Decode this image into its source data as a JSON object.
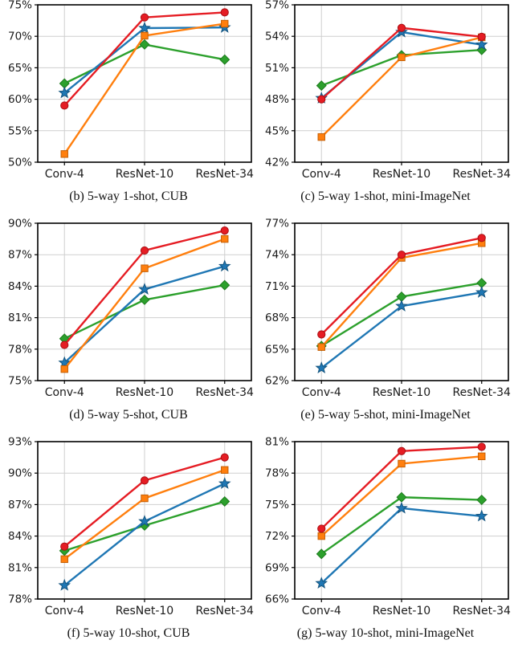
{
  "page": {
    "background": "#ffffff",
    "gridline_color": "#cfcfcf",
    "axis_color": "#000000",
    "tick_label_color": "#1a1a1a"
  },
  "chart_data": [
    {
      "id": "b",
      "type": "line",
      "caption": "(b) 5-way 1-shot, CUB",
      "categories": [
        "Conv-4",
        "ResNet-10",
        "ResNet-34"
      ],
      "ylim": [
        50,
        75
      ],
      "ytick_values": [
        50,
        55,
        60,
        65,
        70,
        75
      ],
      "ytick_labels": [
        "50%",
        "55%",
        "60%",
        "65%",
        "70%",
        "75%"
      ],
      "grid": true,
      "legend": "none",
      "series": [
        {
          "name": "green-diamond",
          "marker": "diamond",
          "color": "#2ca02c",
          "edge": "#1d7a1d",
          "values": [
            62.5,
            68.7,
            66.3
          ]
        },
        {
          "name": "blue-star",
          "marker": "star",
          "color": "#1f77b4",
          "edge": "#15557f",
          "values": [
            61.0,
            71.3,
            71.4
          ]
        },
        {
          "name": "orange-square",
          "marker": "square",
          "color": "#ff7f0e",
          "edge": "#c45f05",
          "values": [
            51.3,
            70.1,
            72.0
          ]
        },
        {
          "name": "red-circle",
          "marker": "circle",
          "color": "#e51c23",
          "edge": "#a80f14",
          "values": [
            59.0,
            73.0,
            73.8
          ]
        }
      ]
    },
    {
      "id": "c",
      "type": "line",
      "caption": "(c) 5-way 1-shot, mini-ImageNet",
      "categories": [
        "Conv-4",
        "ResNet-10",
        "ResNet-34"
      ],
      "ylim": [
        42,
        57
      ],
      "ytick_values": [
        42,
        45,
        48,
        51,
        54,
        57
      ],
      "ytick_labels": [
        "42%",
        "45%",
        "48%",
        "51%",
        "54%",
        "57%"
      ],
      "grid": true,
      "legend": "none",
      "series": [
        {
          "name": "green-diamond",
          "marker": "diamond",
          "color": "#2ca02c",
          "edge": "#1d7a1d",
          "values": [
            49.3,
            52.2,
            52.7
          ]
        },
        {
          "name": "blue-star",
          "marker": "star",
          "color": "#1f77b4",
          "edge": "#15557f",
          "values": [
            48.1,
            54.4,
            53.2
          ]
        },
        {
          "name": "orange-square",
          "marker": "square",
          "color": "#ff7f0e",
          "edge": "#c45f05",
          "values": [
            44.4,
            52.0,
            53.9
          ]
        },
        {
          "name": "red-circle",
          "marker": "circle",
          "color": "#e51c23",
          "edge": "#a80f14",
          "values": [
            48.0,
            54.8,
            53.95
          ]
        }
      ]
    },
    {
      "id": "d",
      "type": "line",
      "caption": "(d) 5-way 5-shot, CUB",
      "categories": [
        "Conv-4",
        "ResNet-10",
        "ResNet-34"
      ],
      "ylim": [
        75,
        90
      ],
      "ytick_values": [
        75,
        78,
        81,
        84,
        87,
        90
      ],
      "ytick_labels": [
        "75%",
        "78%",
        "81%",
        "84%",
        "87%",
        "90%"
      ],
      "grid": true,
      "legend": "none",
      "series": [
        {
          "name": "green-diamond",
          "marker": "diamond",
          "color": "#2ca02c",
          "edge": "#1d7a1d",
          "values": [
            79.0,
            82.7,
            84.1
          ]
        },
        {
          "name": "blue-star",
          "marker": "star",
          "color": "#1f77b4",
          "edge": "#15557f",
          "values": [
            76.7,
            83.7,
            85.9
          ]
        },
        {
          "name": "orange-square",
          "marker": "square",
          "color": "#ff7f0e",
          "edge": "#c45f05",
          "values": [
            76.1,
            85.7,
            88.5
          ]
        },
        {
          "name": "red-circle",
          "marker": "circle",
          "color": "#e51c23",
          "edge": "#a80f14",
          "values": [
            78.4,
            87.4,
            89.3
          ]
        }
      ]
    },
    {
      "id": "e",
      "type": "line",
      "caption": "(e) 5-way 5-shot, mini-ImageNet",
      "categories": [
        "Conv-4",
        "ResNet-10",
        "ResNet-34"
      ],
      "ylim": [
        62,
        77
      ],
      "ytick_values": [
        62,
        65,
        68,
        71,
        74,
        77
      ],
      "ytick_labels": [
        "62%",
        "65%",
        "68%",
        "71%",
        "74%",
        "77%"
      ],
      "grid": true,
      "legend": "none",
      "series": [
        {
          "name": "green-diamond",
          "marker": "diamond",
          "color": "#2ca02c",
          "edge": "#1d7a1d",
          "values": [
            65.3,
            70.0,
            71.3
          ]
        },
        {
          "name": "blue-star",
          "marker": "star",
          "color": "#1f77b4",
          "edge": "#15557f",
          "values": [
            63.2,
            69.1,
            70.4
          ]
        },
        {
          "name": "orange-square",
          "marker": "square",
          "color": "#ff7f0e",
          "edge": "#c45f05",
          "values": [
            65.2,
            73.7,
            75.1
          ]
        },
        {
          "name": "red-circle",
          "marker": "circle",
          "color": "#e51c23",
          "edge": "#a80f14",
          "values": [
            66.4,
            74.0,
            75.6
          ]
        }
      ]
    },
    {
      "id": "f",
      "type": "line",
      "caption": "(f) 5-way 10-shot, CUB",
      "categories": [
        "Conv-4",
        "ResNet-10",
        "ResNet-34"
      ],
      "ylim": [
        78,
        93
      ],
      "ytick_values": [
        78,
        81,
        84,
        87,
        90,
        93
      ],
      "ytick_labels": [
        "78%",
        "81%",
        "84%",
        "87%",
        "90%",
        "93%"
      ],
      "grid": true,
      "legend": "none",
      "series": [
        {
          "name": "green-diamond",
          "marker": "diamond",
          "color": "#2ca02c",
          "edge": "#1d7a1d",
          "values": [
            82.6,
            85.0,
            87.3
          ]
        },
        {
          "name": "blue-star",
          "marker": "star",
          "color": "#1f77b4",
          "edge": "#15557f",
          "values": [
            79.3,
            85.4,
            89.0
          ]
        },
        {
          "name": "orange-square",
          "marker": "square",
          "color": "#ff7f0e",
          "edge": "#c45f05",
          "values": [
            81.8,
            87.6,
            90.3
          ]
        },
        {
          "name": "red-circle",
          "marker": "circle",
          "color": "#e51c23",
          "edge": "#a80f14",
          "values": [
            83.0,
            89.3,
            91.5
          ]
        }
      ]
    },
    {
      "id": "g",
      "type": "line",
      "caption": "(g) 5-way 10-shot, mini-ImageNet",
      "categories": [
        "Conv-4",
        "ResNet-10",
        "ResNet-34"
      ],
      "ylim": [
        66,
        81
      ],
      "ytick_values": [
        66,
        69,
        72,
        75,
        78,
        81
      ],
      "ytick_labels": [
        "66%",
        "69%",
        "72%",
        "75%",
        "78%",
        "81%"
      ],
      "grid": true,
      "legend": "none",
      "series": [
        {
          "name": "green-diamond",
          "marker": "diamond",
          "color": "#2ca02c",
          "edge": "#1d7a1d",
          "values": [
            70.3,
            75.7,
            75.45
          ]
        },
        {
          "name": "blue-star",
          "marker": "star",
          "color": "#1f77b4",
          "edge": "#15557f",
          "values": [
            67.5,
            74.65,
            73.9
          ]
        },
        {
          "name": "orange-square",
          "marker": "square",
          "color": "#ff7f0e",
          "edge": "#c45f05",
          "values": [
            72.0,
            78.9,
            79.6
          ]
        },
        {
          "name": "red-circle",
          "marker": "circle",
          "color": "#e51c23",
          "edge": "#a80f14",
          "values": [
            72.7,
            80.1,
            80.5
          ]
        }
      ]
    }
  ]
}
